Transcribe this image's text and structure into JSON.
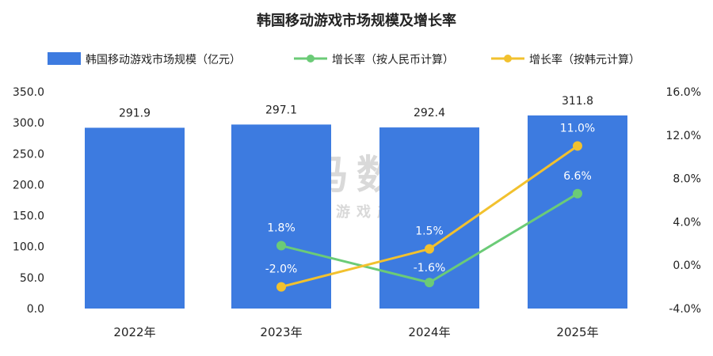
{
  "chart_data": {
    "type": "bar",
    "title": "韩国移动游戏市场规模及增长率",
    "categories": [
      "2022年",
      "2023年",
      "2024年",
      "2025年"
    ],
    "series": [
      {
        "name": "韩国移动游戏市场规模（亿元）",
        "kind": "bar",
        "axis": "left",
        "color": "#3d7be0",
        "values": [
          291.9,
          297.1,
          292.4,
          311.8
        ],
        "labels": [
          "291.9",
          "297.1",
          "292.4",
          "311.8"
        ]
      },
      {
        "name": "增长率（按人民币计算）",
        "kind": "line",
        "axis": "right",
        "color": "#6bcb77",
        "values": [
          null,
          1.8,
          -1.6,
          6.6
        ],
        "labels": [
          "",
          "1.8%",
          "-1.6%",
          "6.6%"
        ]
      },
      {
        "name": "增长率（按韩元计算）",
        "kind": "line",
        "axis": "right",
        "color": "#f2c12e",
        "values": [
          null,
          -2.0,
          1.5,
          11.0
        ],
        "labels": [
          "",
          "-2.0%",
          "1.5%",
          "11.0%"
        ]
      }
    ],
    "left_axis": {
      "min": 0,
      "max": 350,
      "ticks": [
        "0.0",
        "50.0",
        "100.0",
        "150.0",
        "200.0",
        "250.0",
        "300.0",
        "350.0"
      ]
    },
    "right_axis": {
      "min": -4,
      "max": 16,
      "ticks": [
        "-4.0%",
        "0.0%",
        "4.0%",
        "8.0%",
        "12.0%",
        "16.0%"
      ]
    },
    "grid": false,
    "legend": "top"
  },
  "watermark": {
    "main": "伽马数据",
    "sub": "微信号：游戏产业报告"
  }
}
